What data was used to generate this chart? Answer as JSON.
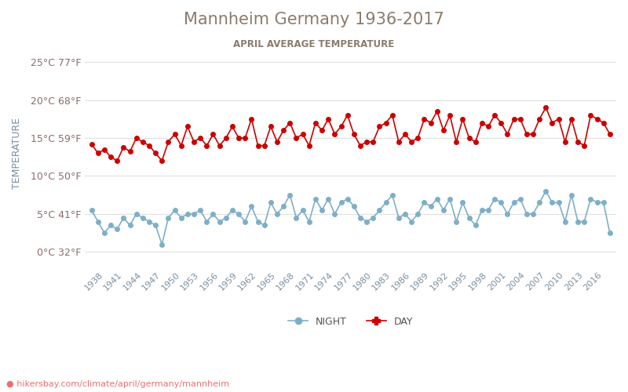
{
  "title": "Mannheim Germany 1936-2017",
  "subtitle": "APRIL AVERAGE TEMPERATURE",
  "ylabel": "TEMPERATURE",
  "url": "hikersbay.com/climate/april/germany/mannheim",
  "years": [
    1936,
    1937,
    1938,
    1939,
    1940,
    1941,
    1942,
    1943,
    1944,
    1945,
    1946,
    1947,
    1948,
    1949,
    1950,
    1951,
    1952,
    1953,
    1954,
    1955,
    1956,
    1957,
    1958,
    1959,
    1960,
    1961,
    1962,
    1963,
    1964,
    1965,
    1966,
    1967,
    1968,
    1969,
    1970,
    1971,
    1972,
    1973,
    1974,
    1975,
    1976,
    1977,
    1978,
    1979,
    1980,
    1981,
    1982,
    1983,
    1984,
    1985,
    1986,
    1987,
    1988,
    1989,
    1990,
    1991,
    1992,
    1993,
    1994,
    1995,
    1996,
    1997,
    1998,
    1999,
    2000,
    2001,
    2002,
    2003,
    2004,
    2005,
    2006,
    2007,
    2008,
    2009,
    2010,
    2011,
    2012,
    2013,
    2014,
    2015,
    2016,
    2017
  ],
  "day_temps": [
    14.2,
    13.0,
    13.5,
    12.5,
    12.0,
    13.8,
    13.2,
    15.0,
    14.5,
    14.0,
    13.0,
    12.0,
    14.5,
    15.5,
    14.0,
    16.5,
    14.5,
    15.0,
    14.0,
    15.5,
    14.0,
    15.0,
    16.5,
    15.0,
    15.0,
    17.5,
    14.0,
    14.0,
    16.5,
    14.5,
    16.0,
    17.0,
    15.0,
    15.5,
    14.0,
    17.0,
    16.0,
    17.5,
    15.5,
    16.5,
    18.0,
    15.5,
    14.0,
    14.5,
    14.5,
    16.5,
    17.0,
    18.0,
    14.5,
    15.5,
    14.5,
    15.0,
    17.5,
    17.0,
    18.5,
    16.0,
    18.0,
    14.5,
    17.5,
    15.0,
    14.5,
    17.0,
    16.5,
    18.0,
    17.0,
    15.5,
    17.5,
    17.5,
    15.5,
    15.5,
    17.5,
    19.0,
    17.0,
    17.5,
    14.5,
    17.5,
    14.5,
    14.0,
    18.0,
    17.5,
    17.0,
    15.5
  ],
  "night_temps": [
    5.5,
    4.0,
    2.5,
    3.5,
    3.0,
    4.5,
    3.5,
    5.0,
    4.5,
    4.0,
    3.5,
    1.0,
    4.5,
    5.5,
    4.5,
    5.0,
    5.0,
    5.5,
    4.0,
    5.0,
    4.0,
    4.5,
    5.5,
    5.0,
    4.0,
    6.0,
    4.0,
    3.5,
    6.5,
    5.0,
    6.0,
    7.5,
    4.5,
    5.5,
    4.0,
    7.0,
    5.5,
    7.0,
    5.0,
    6.5,
    7.0,
    6.0,
    4.5,
    4.0,
    4.5,
    5.5,
    6.5,
    7.5,
    4.5,
    5.0,
    4.0,
    5.0,
    6.5,
    6.0,
    7.0,
    5.5,
    7.0,
    4.0,
    6.5,
    4.5,
    3.5,
    5.5,
    5.5,
    7.0,
    6.5,
    5.0,
    6.5,
    7.0,
    5.0,
    5.0,
    6.5,
    8.0,
    6.5,
    6.5,
    4.0,
    7.5,
    4.0,
    4.0,
    7.0,
    6.5,
    6.5,
    2.5
  ],
  "day_color": "#cc0000",
  "night_color": "#7fafc8",
  "title_color": "#8c7b6b",
  "subtitle_color": "#8c7b6b",
  "ylabel_color": "#7a8fa0",
  "tick_label_color": "#8c6b6b",
  "grid_color": "#e0e0e0",
  "yticks_c": [
    0,
    5,
    10,
    15,
    20,
    25
  ],
  "yticks_f": [
    32,
    41,
    50,
    59,
    68,
    77
  ],
  "ylim": [
    -2,
    28
  ],
  "background_color": "#ffffff",
  "url_color": "#e87070",
  "legend_night": "NIGHT",
  "legend_day": "DAY"
}
